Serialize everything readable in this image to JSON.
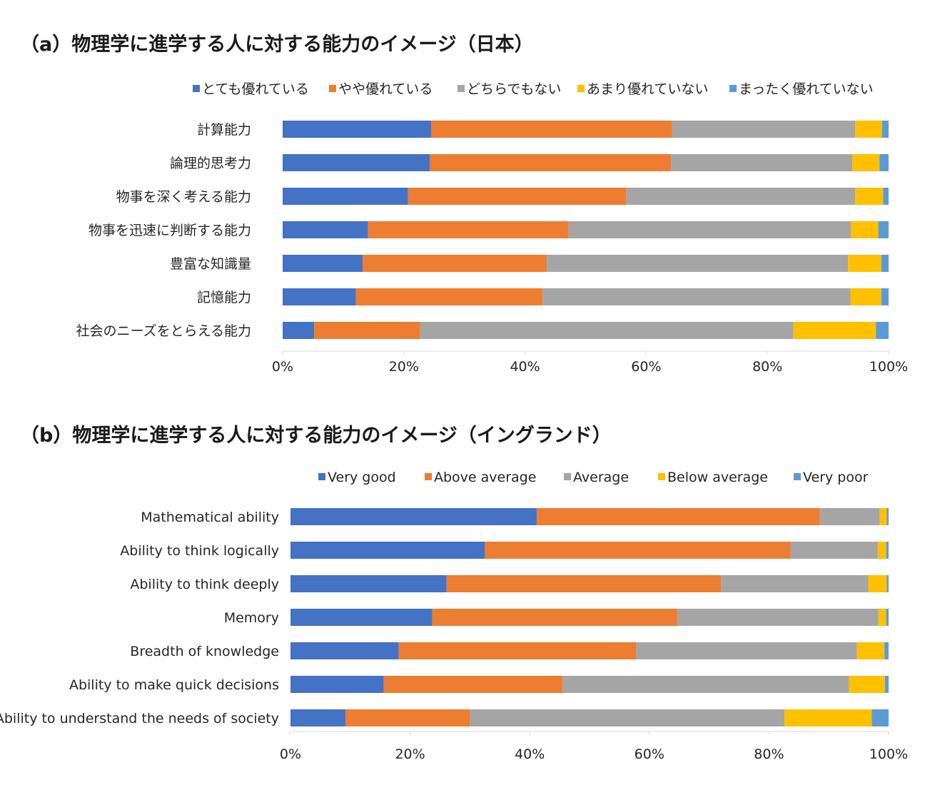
{
  "chart_data": [
    {
      "type": "bar",
      "orientation": "horizontal",
      "stacked": "percent",
      "title": "（a）物理学に進学する人に対する能力のイメージ（日本）",
      "categories": [
        "計算能力",
        "論理的思考力",
        "物事を深く考える能力",
        "物事を迅速に判断する能力",
        "豊富な知識量",
        "記憶能力",
        "社会のニーズをとらえる能力"
      ],
      "series": [
        {
          "name": "とても優れている",
          "color": "#4472C4",
          "values": [
            24.5,
            24.3,
            20.7,
            14.1,
            13.2,
            12.1,
            5.2
          ]
        },
        {
          "name": "やや優れている",
          "color": "#ED7D31",
          "values": [
            39.8,
            39.8,
            36.0,
            33.1,
            30.4,
            30.8,
            17.5
          ]
        },
        {
          "name": "どちらでもない",
          "color": "#A5A5A5",
          "values": [
            30.2,
            29.9,
            37.8,
            46.6,
            49.7,
            50.8,
            61.6
          ]
        },
        {
          "name": "あまり優れていない",
          "color": "#FFC000",
          "values": [
            4.4,
            4.5,
            4.6,
            4.5,
            5.5,
            5.1,
            13.6
          ]
        },
        {
          "name": "まったく優れていない",
          "color": "#5B9BD5",
          "values": [
            1.1,
            1.5,
            0.9,
            1.7,
            1.2,
            1.2,
            2.1
          ]
        }
      ],
      "xlim": [
        0,
        100
      ],
      "ticks": [
        "0%",
        "20%",
        "40%",
        "60%",
        "80%",
        "100%"
      ],
      "legend_position": "top",
      "grid": false
    },
    {
      "type": "bar",
      "orientation": "horizontal",
      "stacked": "percent",
      "title": "（b）物理学に進学する人に対する能力のイメージ（イングランド）",
      "categories": [
        "Mathematical ability",
        "Ability to think logically",
        "Ability to think deeply",
        "Memory",
        "Breadth of knowledge",
        "Ability to make quick decisions",
        "Ability to understand the needs of society"
      ],
      "series": [
        {
          "name": "Very good",
          "color": "#4472C4",
          "values": [
            41.2,
            32.5,
            26.1,
            23.7,
            18.1,
            15.6,
            9.2
          ]
        },
        {
          "name": "Above average",
          "color": "#ED7D31",
          "values": [
            47.3,
            51.1,
            45.9,
            41.0,
            39.7,
            29.9,
            20.8
          ]
        },
        {
          "name": "Average",
          "color": "#A5A5A5",
          "values": [
            10.0,
            14.6,
            24.6,
            33.6,
            36.9,
            47.9,
            52.6
          ]
        },
        {
          "name": "Below average",
          "color": "#FFC000",
          "values": [
            1.2,
            1.4,
            3.1,
            1.3,
            4.6,
            6.0,
            14.6
          ]
        },
        {
          "name": "Very poor",
          "color": "#5B9BD5",
          "values": [
            0.3,
            0.4,
            0.3,
            0.4,
            0.7,
            0.6,
            2.8
          ]
        }
      ],
      "xlim": [
        0,
        100
      ],
      "ticks": [
        "0%",
        "20%",
        "40%",
        "60%",
        "80%",
        "100%"
      ],
      "legend_position": "top",
      "grid": false
    }
  ]
}
